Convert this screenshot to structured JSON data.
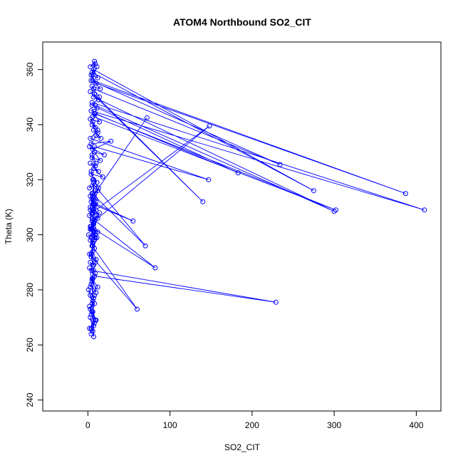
{
  "chart_data": {
    "type": "line",
    "title": "ATOM4 Northbound SO2_CIT",
    "xlabel": "SO2_CIT",
    "ylabel": "Theta (K)",
    "xlim": [
      -55,
      430
    ],
    "ylim": [
      236,
      370
    ],
    "x_ticks": [
      0,
      100,
      200,
      300,
      400
    ],
    "y_ticks": [
      240,
      260,
      280,
      300,
      320,
      340,
      360
    ],
    "grid": false,
    "legend": "none",
    "marker": "open-circle",
    "color": "#0000ff",
    "series": [
      {
        "x": [
          4,
          2,
          8,
          6,
          3,
          7,
          5,
          9,
          2,
          4,
          6,
          3,
          8,
          5,
          1,
          7,
          4,
          10,
          6,
          3,
          9,
          5,
          2,
          8,
          229,
          5,
          3,
          7,
          4,
          10,
          6,
          2,
          60,
          5,
          8,
          3,
          6,
          1,
          9,
          4,
          12,
          7,
          3,
          82,
          5,
          8,
          14,
          2,
          6,
          10,
          4,
          55,
          7,
          3,
          9,
          12,
          5,
          70,
          8,
          2,
          6,
          11,
          4,
          18,
          7,
          13,
          3,
          9,
          5,
          15,
          8,
          20,
          2,
          6,
          28,
          4,
          10,
          16,
          7,
          12,
          5,
          9,
          3,
          14,
          8,
          302,
          6,
          11,
          4,
          410,
          5,
          9,
          300,
          7,
          13,
          3,
          140,
          8,
          5,
          15,
          6,
          387,
          10,
          4,
          12,
          7,
          275,
          5,
          9,
          3,
          8,
          6,
          11,
          4,
          234,
          7,
          14,
          5,
          183,
          9,
          6,
          12,
          3,
          147,
          8,
          5,
          10,
          4,
          7,
          13,
          72,
          6,
          9,
          5,
          148,
          8,
          3,
          11,
          6,
          4,
          9,
          7,
          5,
          12,
          3,
          8,
          6,
          10,
          4,
          7,
          5,
          9,
          3,
          6,
          8,
          4,
          11,
          5,
          7,
          9,
          6,
          3,
          8,
          12,
          5,
          4,
          7,
          6,
          10,
          9
        ],
        "y": [
          264,
          266,
          268,
          265,
          270,
          267,
          272,
          269,
          274,
          271,
          276,
          273,
          278,
          275,
          280,
          277,
          282,
          279,
          284,
          281,
          286,
          283,
          288,
          285,
          275.5,
          287,
          290,
          289,
          292,
          291,
          294,
          293,
          273,
          296,
          295,
          298,
          297,
          300,
          299,
          302,
          301,
          304,
          303,
          288,
          306,
          305,
          308,
          307,
          310,
          309,
          312,
          305,
          311,
          314,
          313,
          316,
          315,
          296,
          318,
          317,
          320,
          319,
          322,
          321,
          324,
          323,
          326,
          325,
          328,
          327,
          330,
          329,
          332,
          331,
          334,
          333,
          336,
          335,
          338,
          337,
          340,
          339,
          342,
          341,
          344,
          309,
          343,
          346,
          345,
          309,
          348,
          347,
          308.5,
          350,
          349,
          352,
          312,
          351,
          354,
          353,
          356,
          315,
          355,
          358,
          357,
          360,
          316,
          359,
          362,
          361,
          363,
          358,
          361,
          356,
          325.5,
          353,
          350,
          347,
          322.5,
          344,
          341,
          338,
          335,
          320,
          332,
          329,
          326,
          323,
          320,
          317,
          342.5,
          314,
          311,
          308,
          339.5,
          305,
          302,
          299,
          296,
          293,
          290,
          287,
          284,
          281,
          278,
          275,
          272,
          269,
          266,
          263,
          305,
          300,
          310,
          315,
          298,
          303,
          307,
          313,
          319,
          301,
          297,
          309,
          311,
          306,
          302,
          299,
          304,
          308,
          312,
          316
        ]
      }
    ]
  }
}
